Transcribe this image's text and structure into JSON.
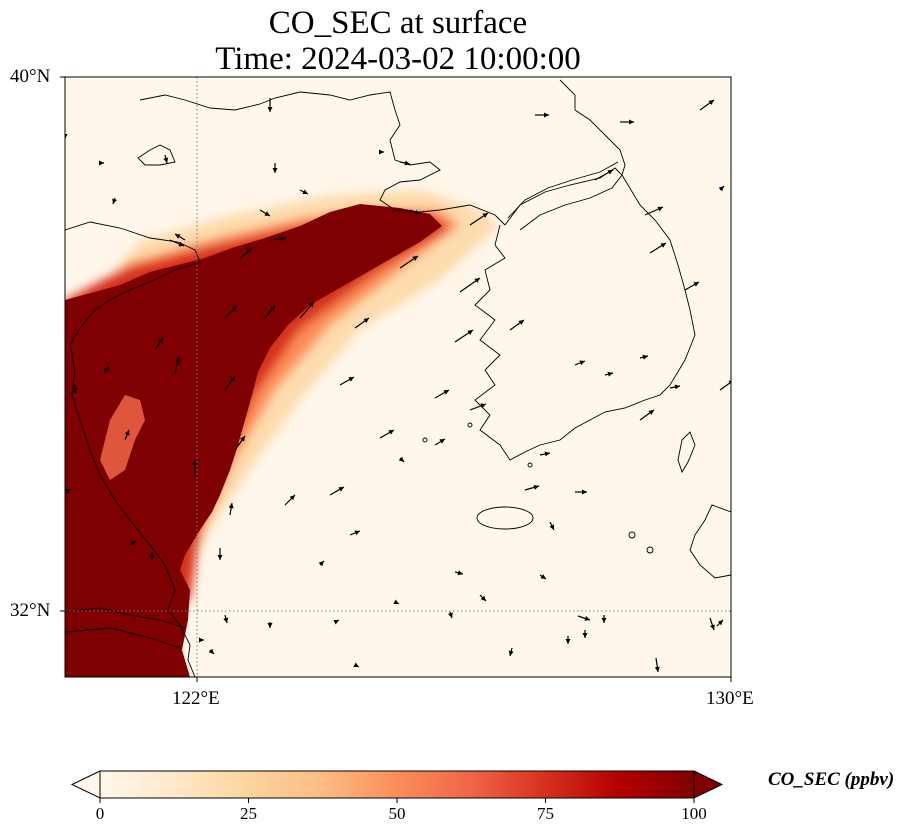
{
  "title_line1": "CO_SEC at surface",
  "title_line2": "Time: 2024-03-02 10:00:00",
  "map": {
    "lon_range": [
      119.5,
      130
    ],
    "lat_range": [
      31,
      40
    ],
    "lat_labels": [
      "40°N",
      "32°N"
    ],
    "lon_labels": [
      "122°E",
      "130°E"
    ],
    "gridline_lon": 122,
    "gridline_lat": 32,
    "gridline_color": "#777777"
  },
  "colorbar": {
    "label": "CO_SEC (ppbv)",
    "ticks": [
      "0",
      "25",
      "50",
      "75",
      "100"
    ],
    "vmin": 0,
    "vmax": 100,
    "colormap": "OrRd",
    "colors": [
      "#fff7ec",
      "#fee8c8",
      "#fdd49e",
      "#fdbb84",
      "#fc8d59",
      "#ef6548",
      "#d7301f",
      "#b30000",
      "#7f0000"
    ]
  },
  "legend_icons": {
    "wind": "wind-vector-arrow-icon"
  }
}
